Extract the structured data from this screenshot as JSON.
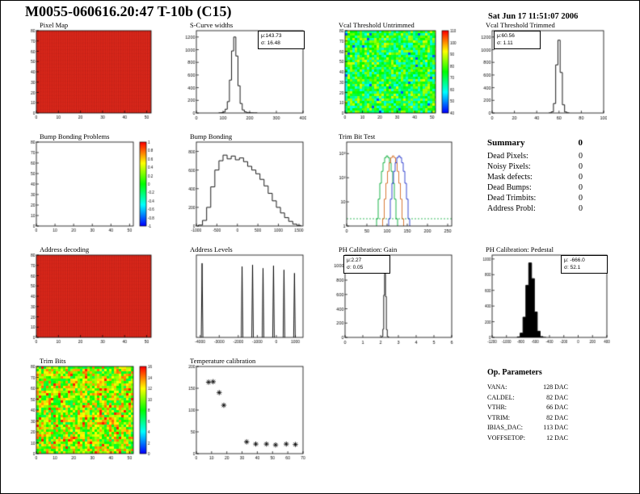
{
  "header": {
    "title": "M0055-060616.20:47 T-10b (C15)",
    "timestamp": "Sat Jun 17 11:51:07 2006"
  },
  "summary": {
    "title": "Summary",
    "total": "0",
    "rows": [
      {
        "label": "Dead Pixels:",
        "value": "0"
      },
      {
        "label": "Noisy Pixels:",
        "value": "0"
      },
      {
        "label": "Mask defects:",
        "value": "0"
      },
      {
        "label": "Dead Bumps:",
        "value": "0"
      },
      {
        "label": "Dead Trimbits:",
        "value": "0"
      },
      {
        "label": "Address Probl:",
        "value": "0"
      }
    ]
  },
  "op_parameters": {
    "title": "Op. Parameters",
    "rows": [
      {
        "label": "VANA:",
        "value": "128 DAC"
      },
      {
        "label": "CALDEL:",
        "value": "82 DAC"
      },
      {
        "label": "VTHR:",
        "value": "66 DAC"
      },
      {
        "label": "VTRIM:",
        "value": "82 DAC"
      },
      {
        "label": "IBIAS_DAC:",
        "value": "113 DAC"
      },
      {
        "label": "VOFFSETOP:",
        "value": "12 DAC"
      }
    ]
  },
  "chart_data": [
    {
      "id": "pixel-map",
      "type": "flatmap",
      "title": "Pixel Map",
      "color": "#ea2e1f",
      "grid": "#7a0c08",
      "xlim": [
        0,
        52
      ],
      "ylim": [
        0,
        80
      ],
      "xticks": [
        0,
        10,
        20,
        30,
        40,
        50
      ],
      "yticks": [
        0,
        10,
        20,
        30,
        40,
        50,
        60,
        70,
        80
      ],
      "tickfont": 5
    },
    {
      "id": "scurve-widths",
      "type": "hist",
      "title": "S-Curve widths",
      "stats": [
        "μ:143.73",
        "σ: 16.48"
      ],
      "xlim": [
        0,
        400
      ],
      "xticks": [
        0,
        100,
        200,
        300,
        400
      ],
      "ylim": [
        0,
        1300
      ],
      "yticks": [
        0,
        200,
        400,
        600,
        800,
        1000,
        1200
      ],
      "x": [
        88,
        96,
        104,
        112,
        120,
        128,
        136,
        144,
        152,
        160,
        168,
        176,
        184,
        192,
        200,
        208,
        216,
        224
      ],
      "y": [
        2,
        5,
        15,
        60,
        180,
        520,
        980,
        1200,
        900,
        430,
        150,
        48,
        18,
        8,
        4,
        2,
        1,
        1
      ]
    },
    {
      "id": "vcal-threshold-untrimmed",
      "type": "noisemap",
      "title": "Vcal Threshold Untrimmed",
      "base": 74,
      "spread": 16,
      "outlier_prob": 0.02,
      "outlier": 46,
      "range": [
        40,
        110
      ],
      "seed": 7,
      "xlim": [
        0,
        52
      ],
      "ylim": [
        0,
        80
      ],
      "xticks": [
        0,
        10,
        20,
        30,
        40,
        50
      ],
      "yticks": [
        0,
        10,
        20,
        30,
        40,
        50,
        60,
        70,
        80
      ],
      "tickfont": 5,
      "colorbar": {
        "range": [
          40,
          110
        ],
        "ticks": [
          110,
          100,
          90,
          80,
          70,
          60,
          50,
          40
        ]
      }
    },
    {
      "id": "vcal-threshold-trimmed",
      "type": "hist",
      "title": "Vcal Threshold Trimmed",
      "stats": [
        "μ:60.56",
        "σ: 1.11"
      ],
      "xlim": [
        0,
        100
      ],
      "xticks": [
        0,
        20,
        40,
        60,
        80,
        100
      ],
      "ylim": [
        0,
        1300
      ],
      "yticks": [
        0,
        200,
        400,
        600,
        800,
        1000,
        1200
      ],
      "x": [
        52,
        54,
        56,
        58,
        60,
        62,
        64,
        66,
        68
      ],
      "y": [
        2,
        18,
        150,
        760,
        1150,
        640,
        130,
        16,
        2
      ]
    },
    {
      "id": "bump-bonding-problems",
      "type": "empty",
      "title": "Bump Bonding Problems",
      "xlim": [
        0,
        52
      ],
      "ylim": [
        0,
        80
      ],
      "xticks": [
        0,
        10,
        20,
        30,
        40,
        50
      ],
      "yticks": [
        0,
        10,
        20,
        30,
        40,
        50,
        60,
        70,
        80
      ],
      "tickfont": 5,
      "colorbar": {
        "range": [
          -1,
          1
        ],
        "ticks": [
          1,
          0.8,
          0.6,
          0.4,
          0.2,
          0,
          -0.2,
          -0.4,
          -0.6,
          -0.8,
          -1
        ]
      }
    },
    {
      "id": "bump-bonding",
      "type": "hist",
      "title": "Bump Bonding",
      "xlim": [
        -1000,
        1600
      ],
      "xticks": [
        -1000,
        -500,
        0,
        500,
        1000,
        1500
      ],
      "ylim": [
        0,
        900
      ],
      "yticks": [
        0,
        200,
        400,
        600,
        800
      ],
      "tickfont": 5,
      "x": [
        -900,
        -800,
        -700,
        -600,
        -500,
        -400,
        -300,
        -200,
        -100,
        0,
        100,
        200,
        300,
        400,
        500,
        600,
        700,
        800,
        900,
        1000,
        1100,
        1200,
        1300,
        1400,
        1500
      ],
      "y": [
        10,
        60,
        200,
        420,
        600,
        700,
        760,
        720,
        750,
        710,
        730,
        690,
        640,
        600,
        560,
        500,
        430,
        350,
        270,
        200,
        140,
        90,
        50,
        20,
        6
      ]
    },
    {
      "id": "trim-bit-test",
      "type": "histlog",
      "title": "Trim Bit Test",
      "log": true,
      "ml": 18,
      "xlim": [
        0,
        260
      ],
      "xticks": [
        0,
        50,
        100,
        150,
        200,
        250
      ],
      "ylim": [
        1,
        3000
      ],
      "yticks": [
        1,
        10,
        100,
        1000
      ],
      "ylabels": [
        "1",
        "10",
        "10²",
        "10³"
      ],
      "baseline": {
        "y": 2,
        "color": "#00aa33"
      },
      "series": [
        {
          "color": "#00aa33",
          "x": [
            76,
            80,
            84,
            88,
            92,
            96,
            100,
            104,
            108,
            112,
            116,
            120,
            124
          ],
          "y": [
            2,
            13,
            59,
            184,
            416,
            680,
            800,
            680,
            416,
            184,
            59,
            13,
            2
          ]
        },
        {
          "color": "#d4691e",
          "x": [
            91,
            95,
            99,
            103,
            107,
            111,
            115,
            119,
            123,
            127,
            131,
            135,
            139
          ],
          "y": [
            2,
            13,
            59,
            184,
            416,
            680,
            800,
            680,
            416,
            184,
            59,
            13,
            2
          ]
        },
        {
          "color": "#2233cc",
          "x": [
            106,
            110,
            114,
            118,
            122,
            126,
            130,
            134,
            138,
            142,
            146,
            150,
            154
          ],
          "y": [
            2,
            13,
            59,
            184,
            416,
            680,
            800,
            680,
            416,
            184,
            59,
            13,
            2
          ]
        }
      ]
    },
    {
      "id": "address-decoding",
      "type": "flatmap",
      "title": "Address decoding",
      "color": "#ea2e1f",
      "grid": "#7a0c08",
      "xlim": [
        0,
        52
      ],
      "ylim": [
        0,
        80
      ],
      "xticks": [
        0,
        10,
        20,
        30,
        40,
        50
      ],
      "yticks": [
        0,
        10,
        20,
        30,
        40,
        50,
        60,
        70,
        80
      ],
      "tickfont": 5
    },
    {
      "id": "address-levels",
      "type": "spikes",
      "title": "Address Levels",
      "xlim": [
        -4200,
        1400
      ],
      "xticks": [
        -4000,
        -3000,
        -2000,
        -1000,
        0,
        1000
      ],
      "ylim": [
        0,
        1
      ],
      "yticks": [],
      "tickfont": 5,
      "spikes": [
        [
          -3900,
          0.9
        ],
        [
          -1800,
          0.86
        ],
        [
          -1250,
          0.88
        ],
        [
          -700,
          0.84
        ],
        [
          -150,
          0.87
        ],
        [
          400,
          0.82
        ],
        [
          950,
          0.78
        ]
      ]
    },
    {
      "id": "ph-calibration-gain",
      "type": "hist",
      "title": "PH Calibration: Gain",
      "stats": [
        "μ:2.27",
        "σ: 0.05"
      ],
      "xlim": [
        0,
        6
      ],
      "xticks": [
        0,
        1,
        2,
        3,
        4,
        5,
        6
      ],
      "ylim": [
        0,
        1150
      ],
      "yticks": [
        0,
        200,
        400,
        600,
        800,
        1000
      ],
      "x": [
        2.05,
        2.1,
        2.15,
        2.2,
        2.25,
        2.3,
        2.35,
        2.4,
        2.45
      ],
      "y": [
        2,
        14,
        115,
        590,
        1000,
        570,
        108,
        13,
        2
      ]
    },
    {
      "id": "ph-calibration-pedestal",
      "type": "hist",
      "fill": true,
      "title": "PH Calibration: Pedestal",
      "stats": [
        "μ: -666.0",
        "σ: 52.1"
      ],
      "xlim": [
        -1200,
        400
      ],
      "xticks": [
        -1200,
        -1000,
        -800,
        -600,
        -400,
        -200,
        0,
        200,
        400
      ],
      "tickfont": 4.5,
      "ylim": [
        0,
        1050
      ],
      "yticks": [
        0,
        200,
        400,
        600,
        800,
        1000
      ],
      "x": [
        -830,
        -790,
        -750,
        -710,
        -670,
        -630,
        -590,
        -550,
        -510,
        -470
      ],
      "y": [
        7,
        55,
        258,
        665,
        950,
        750,
        325,
        79,
        11,
        1
      ]
    },
    {
      "id": "trim-bits",
      "type": "noisemap",
      "title": "Trim Bits",
      "base": 10.5,
      "spread": 4,
      "outlier_prob": 0.03,
      "outlier": 15.5,
      "range": [
        0,
        16
      ],
      "seed": 13,
      "xlim": [
        0,
        52
      ],
      "ylim": [
        0,
        80
      ],
      "xticks": [
        0,
        10,
        20,
        30,
        40,
        50
      ],
      "yticks": [
        0,
        10,
        20,
        30,
        40,
        50,
        60,
        70,
        80
      ],
      "tickfont": 5,
      "colorbar": {
        "range": [
          0,
          16
        ],
        "ticks": [
          16,
          14,
          12,
          10,
          8,
          6,
          4,
          2,
          0
        ]
      }
    },
    {
      "id": "temperature-calibration",
      "type": "scatter",
      "title": "Temperature calibration",
      "xlim": [
        0,
        70
      ],
      "ylim": [
        0,
        200
      ],
      "xticks": [
        0,
        10,
        20,
        30,
        40,
        50,
        60,
        70
      ],
      "yticks": [
        0,
        50,
        100,
        150,
        200
      ],
      "tickfont": 5,
      "points": [
        [
          8,
          164
        ],
        [
          11,
          165
        ],
        [
          15,
          140
        ],
        [
          18,
          111
        ],
        [
          33,
          27
        ],
        [
          39,
          22
        ],
        [
          46,
          22
        ],
        [
          52,
          20
        ],
        [
          59,
          22
        ],
        [
          65,
          21
        ]
      ]
    }
  ]
}
